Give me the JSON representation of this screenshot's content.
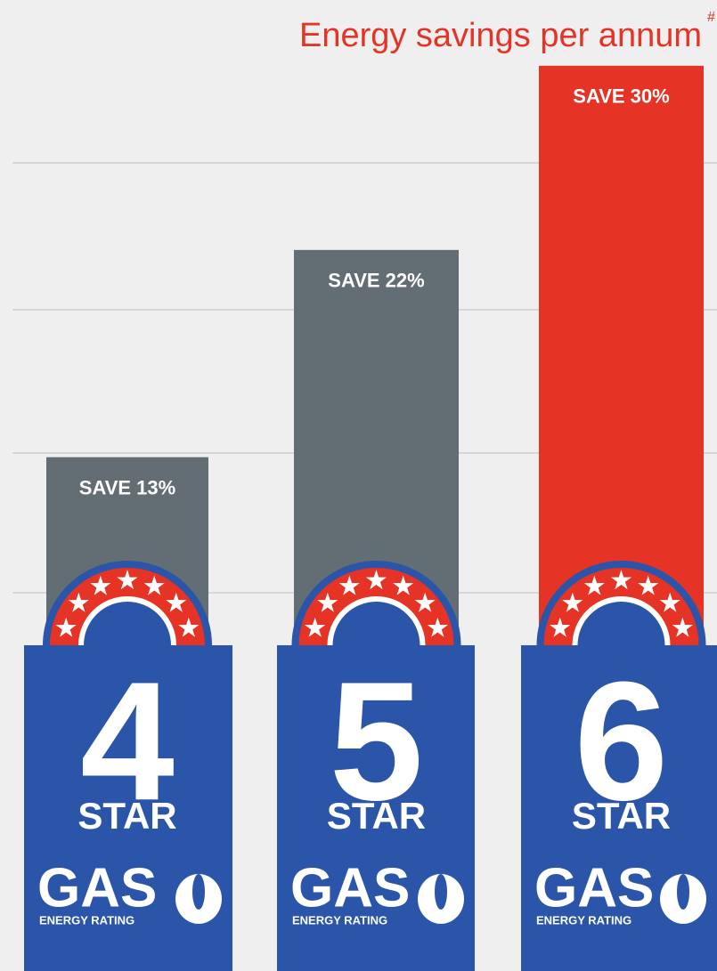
{
  "chart_data": {
    "type": "bar",
    "title": "Energy savings per annum",
    "title_mark": "#",
    "categories": [
      "4",
      "5",
      "6"
    ],
    "values": [
      13,
      22,
      30
    ],
    "value_labels": [
      "SAVE 13%",
      "SAVE 22%",
      "SAVE 30%"
    ],
    "colors": [
      "#626e74",
      "#626e74",
      "#e53325"
    ],
    "badge": {
      "star": "STAR",
      "gas": "GAS",
      "rating": "ENERGY RATING"
    }
  }
}
